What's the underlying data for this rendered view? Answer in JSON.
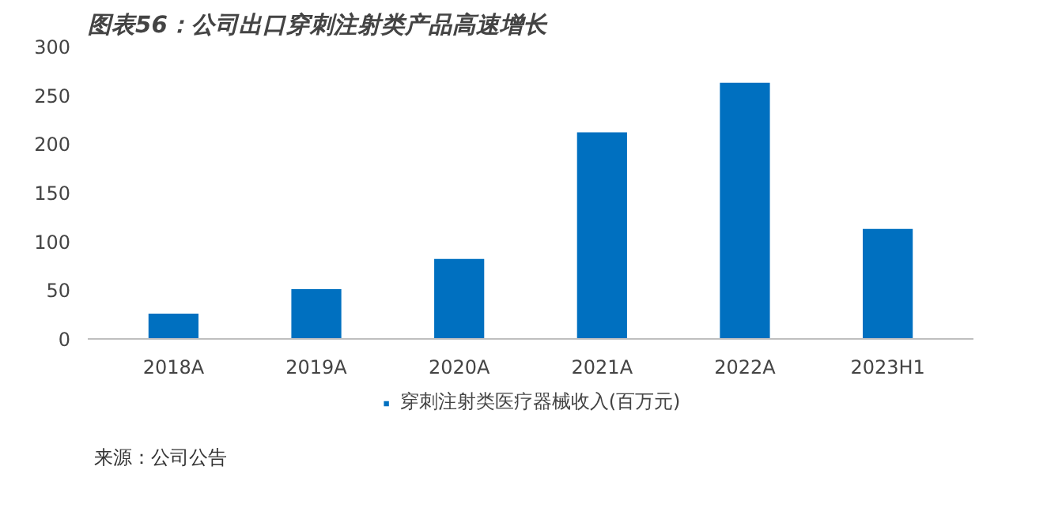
{
  "chart_data": {
    "type": "bar",
    "title": "图表56：公司出口穿刺注射类产品高速增长",
    "categories": [
      "2018A",
      "2019A",
      "2020A",
      "2021A",
      "2022A",
      "2023H1"
    ],
    "series": [
      {
        "name": "穿刺注射类医疗器械收入(百万元)",
        "color": "#0070c0",
        "values": [
          26,
          51,
          82,
          212,
          263,
          113
        ]
      }
    ],
    "ylim": [
      0,
      300
    ],
    "yticks": [
      0,
      50,
      100,
      150,
      200,
      250,
      300
    ],
    "grid": false,
    "legend": "bottom",
    "annotations": [
      "来源：公司公告"
    ]
  }
}
